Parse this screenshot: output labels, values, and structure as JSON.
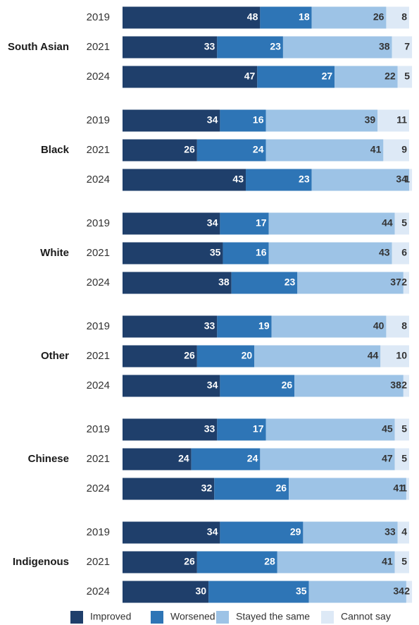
{
  "chart_data": {
    "type": "bar",
    "orientation": "horizontal",
    "stacked": true,
    "xlim": [
      0,
      100
    ],
    "legend_position": "bottom",
    "series_names": [
      "Improved",
      "Worsened",
      "Stayed the same",
      "Cannot say"
    ],
    "colors": [
      "#1f3f6b",
      "#2e75b6",
      "#9dc3e6",
      "#dde9f6"
    ],
    "groups": [
      {
        "name": "South Asian",
        "rows": [
          {
            "year": "2019",
            "values": [
              48,
              18,
              26,
              8
            ]
          },
          {
            "year": "2021",
            "values": [
              33,
              23,
              38,
              7
            ]
          },
          {
            "year": "2024",
            "values": [
              47,
              27,
              22,
              5
            ]
          }
        ]
      },
      {
        "name": "Black",
        "rows": [
          {
            "year": "2019",
            "values": [
              34,
              16,
              39,
              11
            ]
          },
          {
            "year": "2021",
            "values": [
              26,
              24,
              41,
              9
            ]
          },
          {
            "year": "2024",
            "values": [
              43,
              23,
              34,
              1
            ]
          }
        ]
      },
      {
        "name": "White",
        "rows": [
          {
            "year": "2019",
            "values": [
              34,
              17,
              44,
              5
            ]
          },
          {
            "year": "2021",
            "values": [
              35,
              16,
              43,
              6
            ]
          },
          {
            "year": "2024",
            "values": [
              38,
              23,
              37,
              2
            ]
          }
        ]
      },
      {
        "name": "Other",
        "rows": [
          {
            "year": "2019",
            "values": [
              33,
              19,
              40,
              8
            ]
          },
          {
            "year": "2021",
            "values": [
              26,
              20,
              44,
              10
            ]
          },
          {
            "year": "2024",
            "values": [
              34,
              26,
              38,
              2
            ]
          }
        ]
      },
      {
        "name": "Chinese",
        "rows": [
          {
            "year": "2019",
            "values": [
              33,
              17,
              45,
              5
            ]
          },
          {
            "year": "2021",
            "values": [
              24,
              24,
              47,
              5
            ]
          },
          {
            "year": "2024",
            "values": [
              32,
              26,
              41,
              1
            ]
          }
        ]
      },
      {
        "name": "Indigenous",
        "rows": [
          {
            "year": "2019",
            "values": [
              34,
              29,
              33,
              4
            ]
          },
          {
            "year": "2021",
            "values": [
              26,
              28,
              41,
              5
            ]
          },
          {
            "year": "2024",
            "values": [
              30,
              35,
              34,
              2
            ]
          }
        ]
      }
    ]
  }
}
